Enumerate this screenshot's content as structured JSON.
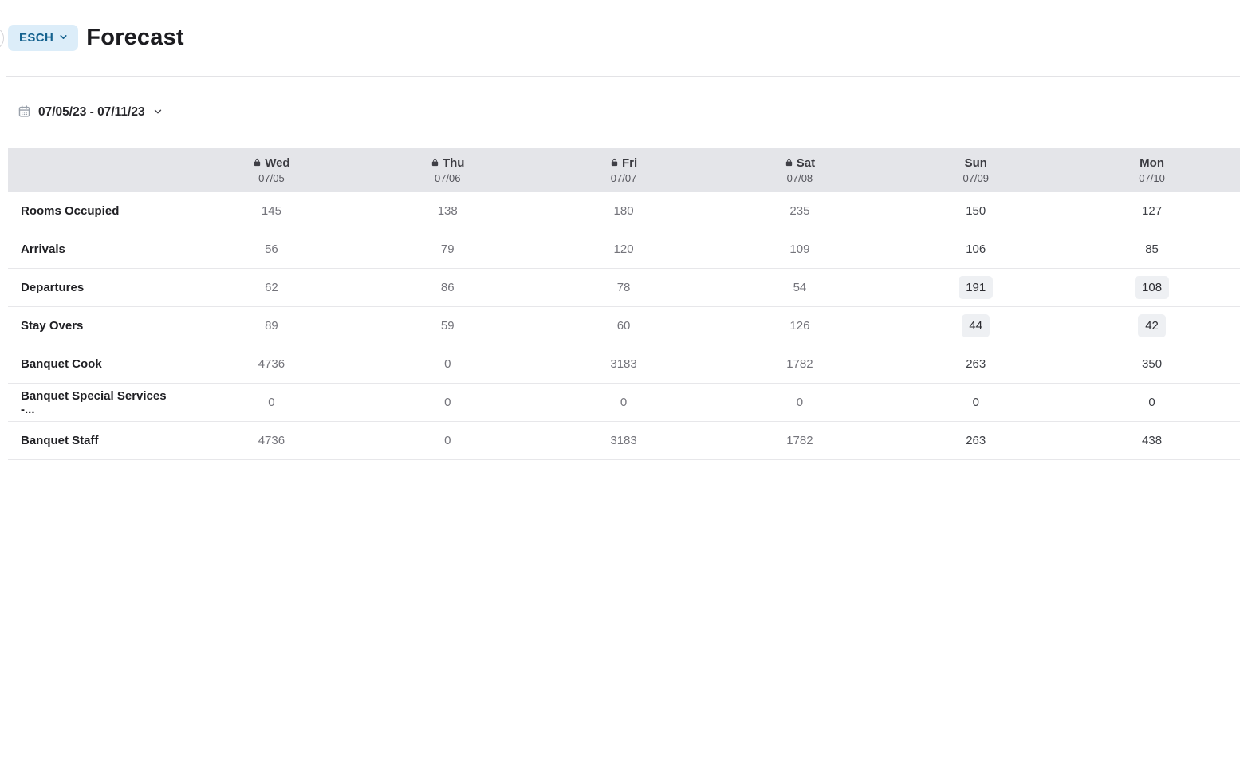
{
  "header": {
    "property_code": "ESCH",
    "title": "Forecast"
  },
  "date_range": {
    "label": "07/05/23 - 07/11/23"
  },
  "table": {
    "columns": [
      {
        "day": "Wed",
        "date": "07/05",
        "locked": true
      },
      {
        "day": "Thu",
        "date": "07/06",
        "locked": true
      },
      {
        "day": "Fri",
        "date": "07/07",
        "locked": true
      },
      {
        "day": "Sat",
        "date": "07/08",
        "locked": true
      },
      {
        "day": "Sun",
        "date": "07/09",
        "locked": false
      },
      {
        "day": "Mon",
        "date": "07/10",
        "locked": false
      }
    ],
    "rows": [
      {
        "label": "Rooms Occupied",
        "values": [
          "145",
          "138",
          "180",
          "235",
          "150",
          "127"
        ],
        "boxed": []
      },
      {
        "label": "Arrivals",
        "values": [
          "56",
          "79",
          "120",
          "109",
          "106",
          "85"
        ],
        "boxed": []
      },
      {
        "label": "Departures",
        "values": [
          "62",
          "86",
          "78",
          "54",
          "191",
          "108"
        ],
        "boxed": [
          4,
          5
        ]
      },
      {
        "label": "Stay Overs",
        "values": [
          "89",
          "59",
          "60",
          "126",
          "44",
          "42"
        ],
        "boxed": [
          4,
          5
        ]
      },
      {
        "label": "Banquet Cook",
        "values": [
          "4736",
          "0",
          "3183",
          "1782",
          "263",
          "350"
        ],
        "boxed": []
      },
      {
        "label": "Banquet Special Services -...",
        "values": [
          "0",
          "0",
          "0",
          "0",
          "0",
          "0"
        ],
        "boxed": []
      },
      {
        "label": "Banquet Staff",
        "values": [
          "4736",
          "0",
          "3183",
          "1782",
          "263",
          "438"
        ],
        "boxed": []
      }
    ]
  },
  "icons": {
    "lock": "lock-icon",
    "calendar": "calendar-icon",
    "chevron": "chevron-down-icon"
  },
  "colors": {
    "property_button_bg": "#dcedf9",
    "property_button_text": "#15628f",
    "table_header_bg": "#e4e5e9",
    "row_border": "#e7e7ea",
    "locked_value_text": "#74747b",
    "editable_value_text": "#3d3f45",
    "boxed_cell_bg": "#eef0f3",
    "title_text": "#1c1c20"
  }
}
